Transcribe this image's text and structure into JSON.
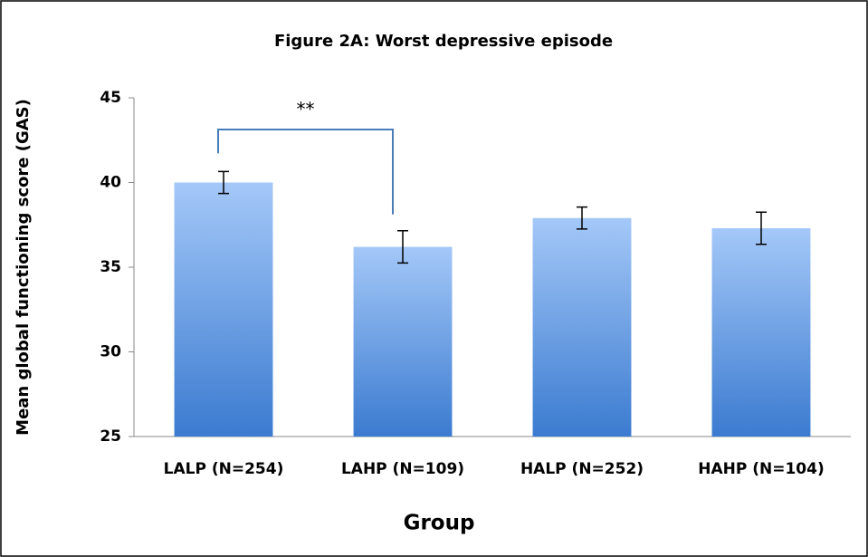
{
  "chart_data": {
    "type": "bar",
    "title": "Figure 2A: Worst depressive episode",
    "xlabel": "Group",
    "ylabel": "Mean global functioning score (GAS)",
    "categories": [
      "LALP (N=254)",
      "LAHP (N=109)",
      "HALP (N=252)",
      "HAHP (N=104)"
    ],
    "values": [
      40.0,
      36.2,
      37.9,
      37.3
    ],
    "errors": [
      0.65,
      0.95,
      0.65,
      0.95
    ],
    "ylim": [
      25,
      45
    ],
    "yticks": [
      25,
      30,
      35,
      40,
      45
    ],
    "grid": false,
    "significance": {
      "label": "**",
      "between": [
        0,
        1
      ]
    }
  }
}
